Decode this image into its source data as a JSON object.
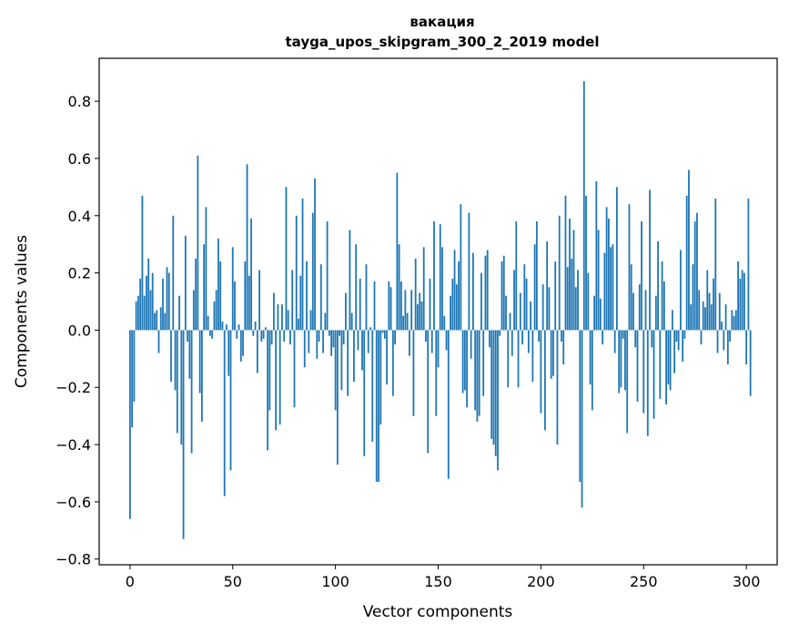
{
  "chart_data": {
    "type": "bar",
    "title": "вакация",
    "subtitle": "tayga_upos_skipgram_300_2_2019 model",
    "xlabel": "Vector components",
    "ylabel": "Components values",
    "xlim": [
      -15,
      315
    ],
    "ylim": [
      -0.82,
      0.95
    ],
    "xticks": [
      0,
      50,
      100,
      150,
      200,
      250,
      300
    ],
    "xtick_labels": [
      "0",
      "50",
      "100",
      "150",
      "200",
      "250",
      "300"
    ],
    "yticks": [
      -0.8,
      -0.6,
      -0.4,
      -0.2,
      0.0,
      0.2,
      0.4,
      0.6,
      0.8
    ],
    "ytick_labels": [
      "−0.8",
      "−0.6",
      "−0.4",
      "−0.2",
      "0.0",
      "0.2",
      "0.4",
      "0.6",
      "0.8"
    ],
    "grid": false,
    "bar_color": "#1f77b4",
    "values": [
      -0.66,
      -0.34,
      -0.25,
      0.1,
      0.12,
      0.18,
      0.47,
      0.12,
      0.19,
      0.25,
      0.14,
      0.2,
      0.06,
      0.07,
      -0.08,
      0.08,
      0.18,
      0.06,
      0.22,
      0.2,
      -0.18,
      0.4,
      -0.21,
      -0.36,
      0.12,
      -0.4,
      -0.73,
      0.33,
      -0.04,
      -0.17,
      -0.43,
      0.14,
      0.25,
      0.61,
      -0.22,
      -0.32,
      0.3,
      0.43,
      0.05,
      -0.02,
      -0.03,
      0.1,
      0.14,
      0.32,
      0.24,
      0.03,
      -0.58,
      0.02,
      -0.16,
      -0.49,
      0.29,
      0.17,
      -0.03,
      0.02,
      -0.11,
      -0.09,
      0.24,
      0.58,
      0.19,
      0.39,
      -0.02,
      0.03,
      -0.15,
      0.21,
      -0.04,
      -0.03,
      0.01,
      -0.42,
      -0.28,
      -0.05,
      0.13,
      -0.35,
      0.09,
      -0.33,
      0.09,
      -0.04,
      0.5,
      0.07,
      -0.05,
      0.21,
      -0.27,
      0.4,
      0.04,
      0.19,
      0.46,
      -0.13,
      0.24,
      -0.08,
      0.07,
      0.41,
      0.53,
      -0.1,
      -0.04,
      0.23,
      -0.08,
      0.06,
      0.38,
      -0.02,
      -0.09,
      -0.06,
      -0.28,
      -0.47,
      -0.02,
      -0.21,
      -0.05,
      0.13,
      -0.23,
      0.35,
      0.06,
      -0.18,
      0.3,
      -0.07,
      0.18,
      -0.14,
      -0.44,
      0.23,
      -0.08,
      0.01,
      -0.39,
      0.17,
      -0.53,
      -0.53,
      -0.33,
      -0.01,
      -0.03,
      -0.19,
      0.17,
      0.15,
      -0.23,
      -0.05,
      0.55,
      0.3,
      0.17,
      0.05,
      0.14,
      0.06,
      -0.09,
      0.14,
      -0.3,
      0.25,
      0.09,
      0.13,
      0.1,
      0.29,
      -0.04,
      -0.43,
      0.18,
      -0.08,
      0.38,
      -0.3,
      -0.13,
      0.37,
      0.29,
      0.05,
      -0.07,
      -0.52,
      0.12,
      0.18,
      0.28,
      0.16,
      0.24,
      0.44,
      -0.22,
      -0.21,
      -0.27,
      0.41,
      -0.1,
      0.27,
      -0.28,
      -0.32,
      -0.3,
      0.2,
      -0.23,
      0.26,
      0.28,
      -0.06,
      -0.38,
      -0.4,
      -0.44,
      -0.49,
      -0.02,
      0.24,
      0.26,
      0.12,
      -0.2,
      0.06,
      -0.09,
      0.21,
      0.38,
      -0.2,
      0.13,
      -0.05,
      0.23,
      0.18,
      -0.08,
      0.1,
      -0.18,
      0.3,
      0.38,
      -0.04,
      -0.29,
      0.16,
      -0.35,
      0.31,
      0.15,
      -0.17,
      -0.16,
      0.24,
      -0.4,
      0.4,
      -0.04,
      -0.12,
      0.47,
      0.22,
      0.39,
      0.25,
      0.35,
      0.15,
      0.21,
      -0.53,
      -0.62,
      0.87,
      0.47,
      0.2,
      -0.19,
      -0.28,
      0.12,
      0.52,
      0.35,
      0.11,
      -0.05,
      0.27,
      0.43,
      0.39,
      0.29,
      0.3,
      -0.08,
      0.5,
      -0.22,
      -0.2,
      -0.03,
      -0.21,
      -0.36,
      0.44,
      0.23,
      0.13,
      -0.06,
      -0.25,
      0.16,
      0.38,
      -0.29,
      0.14,
      -0.37,
      0.49,
      -0.06,
      -0.31,
      0.12,
      0.31,
      -0.24,
      0.24,
      0.17,
      -0.26,
      -0.19,
      -0.21,
      0.07,
      -0.15,
      -0.04,
      -0.07,
      0.28,
      -0.11,
      -0.03,
      0.47,
      0.56,
      0.09,
      0.23,
      0.38,
      0.41,
      0.14,
      -0.05,
      0.1,
      0.08,
      0.21,
      0.13,
      0.09,
      0.18,
      0.46,
      -0.08,
      0.13,
      0.03,
      -0.07,
      0.09,
      -0.12,
      -0.04,
      0.07,
      0.05,
      0.07,
      0.24,
      0.18,
      0.21,
      0.2,
      -0.12,
      0.46,
      -0.23
    ]
  }
}
